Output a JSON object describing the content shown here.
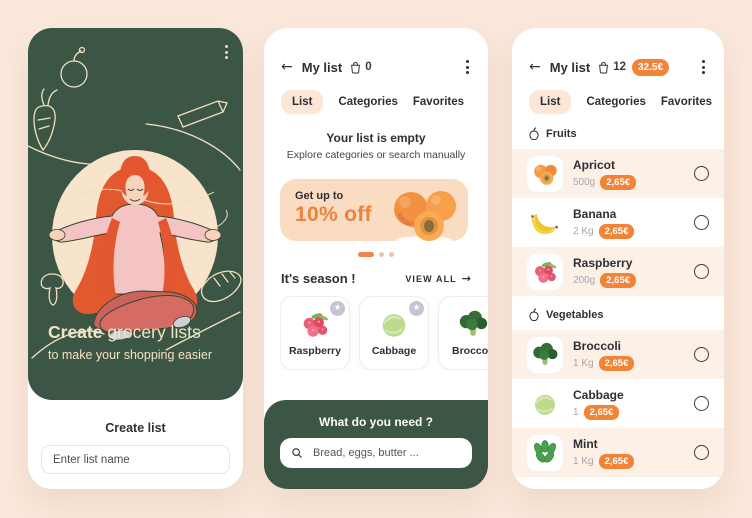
{
  "colors": {
    "page_bg": "#fbe8da",
    "card_bg": "#ffffff",
    "green": "#3c5646",
    "cream": "#f2dfc0",
    "accent_orange": "#f0813c",
    "badge_orange": "#f28438",
    "banner_bg": "#fadcc2",
    "tab_pill_bg": "#fce7d7",
    "row_alt_bg": "#fdf1e7",
    "text_dark": "#2e2f36",
    "text_gray": "#a6a6ae",
    "star_badge_bg": "#c7c3d6"
  },
  "tabs": [
    "List",
    "Categories",
    "Favorites"
  ],
  "active_tab": "List",
  "screen1": {
    "headline_bold": "Create",
    "headline_rest": " grocery lists",
    "subheadline": "to make your shopping easier",
    "create_list_label": "Create list",
    "input_placeholder": "Enter list name"
  },
  "screen2": {
    "title": "My list",
    "cart_count": "0",
    "empty_title": "Your list is empty",
    "empty_subtitle": "Explore categories or search manually",
    "promo_line1": "Get up to",
    "promo_line2": "10% off",
    "season_title": "It's season !",
    "view_all_label": "VIEW ALL",
    "season_items": [
      "Raspberry",
      "Cabbage",
      "Broccoli"
    ],
    "footer_title": "What do you need ?",
    "search_placeholder": "Bread, eggs, butter ..."
  },
  "screen3": {
    "title": "My list",
    "cart_count": "12",
    "total_badge": "32.5€",
    "sections": [
      {
        "name": "Fruits",
        "items": [
          {
            "name": "Apricot",
            "weight": "500g",
            "price": "2,65€"
          },
          {
            "name": "Banana",
            "weight": "2 Kg",
            "price": "2,65€"
          },
          {
            "name": "Raspberry",
            "weight": "200g",
            "price": "2,65€"
          }
        ]
      },
      {
        "name": "Vegetables",
        "items": [
          {
            "name": "Broccoli",
            "weight": "1 Kg",
            "price": "2,65€"
          },
          {
            "name": "Cabbage",
            "weight": "1",
            "price": "2,65€"
          },
          {
            "name": "Mint",
            "weight": "1 Kg",
            "price": "2,65€"
          }
        ]
      }
    ]
  }
}
